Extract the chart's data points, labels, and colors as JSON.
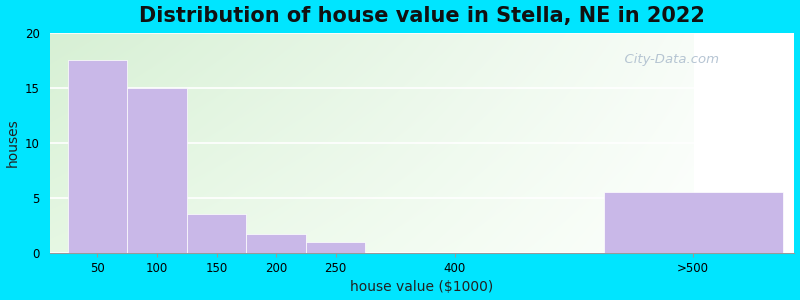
{
  "title": "Distribution of house value in Stella, NE in 2022",
  "xlabel": "house value ($1000)",
  "ylabel": "houses",
  "categories": [
    "50",
    "100",
    "150",
    "200",
    "250",
    "400",
    ">500"
  ],
  "x_positions": [
    0,
    1,
    2,
    3,
    4,
    6,
    9
  ],
  "bar_widths": [
    1,
    1,
    1,
    1,
    1,
    1,
    3
  ],
  "values": [
    17.5,
    15.0,
    3.5,
    1.75,
    1.0,
    0.0,
    5.5
  ],
  "bar_color": "#c9b8e8",
  "bar_edgecolor": "#c9b8e8",
  "ylim": [
    0,
    20
  ],
  "yticks": [
    0,
    5,
    10,
    15,
    20
  ],
  "figure_bg": "#00e5ff",
  "title_fontsize": 15,
  "axis_label_fontsize": 10,
  "watermark_text": "  City-Data.com",
  "watermark_color": "#aabbcc",
  "bg_color_left": "#d4edda",
  "bg_color_right": "#f0f8f0",
  "bg_color_top": "#e8f5e2",
  "bg_color_bottom": "#f8fff8"
}
